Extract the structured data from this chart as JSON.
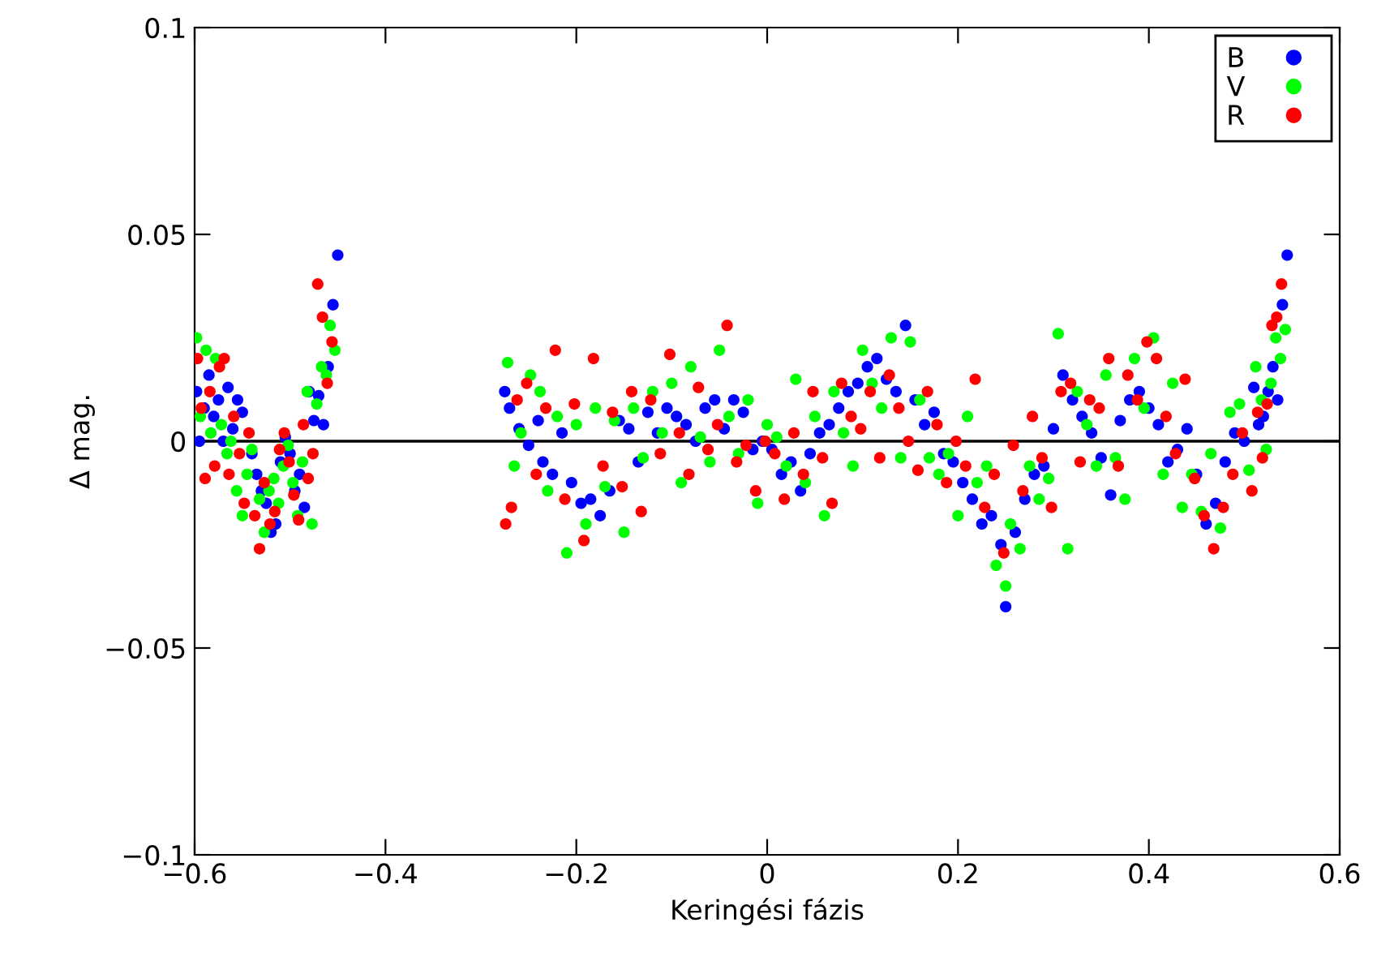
{
  "chart_data": {
    "type": "scatter",
    "xlabel": "Keringési fázis",
    "ylabel": "Δ mag.",
    "xlim": [
      -0.6,
      0.6
    ],
    "ylim": [
      -0.1,
      0.1
    ],
    "xticks": [
      {
        "value": -0.6,
        "label": "−0.6"
      },
      {
        "value": -0.4,
        "label": "−0.4"
      },
      {
        "value": -0.2,
        "label": "−0.2"
      },
      0,
      0.2,
      0.4,
      0.6
    ],
    "yticks": [
      {
        "value": -0.1,
        "label": "−0.1"
      },
      {
        "value": -0.05,
        "label": "−0.05"
      },
      0,
      0.05,
      0.1
    ],
    "marker": "circle",
    "legend": "top right",
    "ref_lines": [
      {
        "axis": "y",
        "value": 0,
        "color": "#000000"
      }
    ],
    "series": [
      {
        "name": "B",
        "color": "#0000ff",
        "x": [
          -0.598,
          -0.595,
          -0.59,
          -0.585,
          -0.58,
          -0.575,
          -0.57,
          -0.565,
          -0.56,
          -0.555,
          -0.55,
          -0.54,
          -0.535,
          -0.53,
          -0.525,
          -0.52,
          -0.515,
          -0.51,
          -0.505,
          -0.5,
          -0.495,
          -0.49,
          -0.485,
          -0.48,
          -0.475,
          -0.47,
          -0.465,
          -0.46,
          -0.455,
          -0.45,
          -0.275,
          -0.27,
          -0.26,
          -0.25,
          -0.24,
          -0.235,
          -0.225,
          -0.215,
          -0.205,
          -0.195,
          -0.185,
          -0.175,
          -0.165,
          -0.155,
          -0.145,
          -0.135,
          -0.125,
          -0.115,
          -0.105,
          -0.095,
          -0.085,
          -0.075,
          -0.065,
          -0.055,
          -0.045,
          -0.035,
          -0.025,
          -0.015,
          -0.005,
          0.005,
          0.015,
          0.025,
          0.035,
          0.045,
          0.055,
          0.065,
          0.075,
          0.085,
          0.095,
          0.105,
          0.115,
          0.125,
          0.135,
          0.145,
          0.155,
          0.165,
          0.175,
          0.185,
          0.195,
          0.205,
          0.215,
          0.225,
          0.235,
          0.245,
          0.25,
          0.26,
          0.27,
          0.28,
          0.29,
          0.3,
          0.31,
          0.32,
          0.33,
          0.34,
          0.35,
          0.36,
          0.37,
          0.38,
          0.39,
          0.4,
          0.41,
          0.42,
          0.43,
          0.44,
          0.45,
          0.46,
          0.47,
          0.48,
          0.49,
          0.5,
          0.51,
          0.515,
          0.52,
          0.525,
          0.53,
          0.535,
          0.54,
          0.545
        ],
        "values": [
          0.012,
          0.0,
          0.008,
          0.016,
          0.006,
          0.01,
          0.0,
          0.013,
          0.003,
          0.01,
          0.007,
          -0.003,
          -0.008,
          -0.012,
          -0.015,
          -0.022,
          -0.02,
          -0.005,
          0.001,
          -0.003,
          -0.012,
          -0.008,
          -0.016,
          0.012,
          0.005,
          0.011,
          0.004,
          0.018,
          0.033,
          0.045,
          0.012,
          0.008,
          0.003,
          -0.001,
          0.005,
          -0.005,
          -0.008,
          0.002,
          -0.01,
          -0.015,
          -0.014,
          -0.018,
          -0.012,
          0.005,
          0.003,
          -0.005,
          0.007,
          0.002,
          0.008,
          0.006,
          0.004,
          0.0,
          0.008,
          0.01,
          0.003,
          0.01,
          0.007,
          -0.002,
          0.0,
          -0.002,
          -0.008,
          -0.005,
          -0.012,
          -0.003,
          0.002,
          0.004,
          0.008,
          0.012,
          0.014,
          0.018,
          0.02,
          0.015,
          0.012,
          0.028,
          0.01,
          0.004,
          0.007,
          -0.003,
          -0.005,
          -0.01,
          -0.014,
          -0.02,
          -0.018,
          -0.025,
          -0.04,
          -0.022,
          -0.014,
          -0.008,
          -0.006,
          0.003,
          0.016,
          0.01,
          0.006,
          0.002,
          -0.004,
          -0.013,
          0.005,
          0.01,
          0.012,
          0.008,
          0.004,
          -0.005,
          -0.002,
          0.003,
          -0.008,
          -0.02,
          -0.015,
          -0.005,
          0.002,
          0.0,
          0.013,
          0.004,
          0.006,
          0.012,
          0.018,
          0.01,
          0.033,
          0.045
        ]
      },
      {
        "name": "V",
        "color": "#00ff00",
        "x": [
          -0.598,
          -0.594,
          -0.588,
          -0.583,
          -0.578,
          -0.572,
          -0.566,
          -0.562,
          -0.556,
          -0.55,
          -0.545,
          -0.54,
          -0.532,
          -0.527,
          -0.522,
          -0.517,
          -0.512,
          -0.507,
          -0.502,
          -0.497,
          -0.492,
          -0.487,
          -0.482,
          -0.477,
          -0.472,
          -0.467,
          -0.462,
          -0.458,
          -0.453,
          -0.272,
          -0.265,
          -0.258,
          -0.248,
          -0.238,
          -0.23,
          -0.22,
          -0.21,
          -0.2,
          -0.19,
          -0.18,
          -0.17,
          -0.16,
          -0.15,
          -0.14,
          -0.13,
          -0.12,
          -0.11,
          -0.1,
          -0.09,
          -0.08,
          -0.07,
          -0.06,
          -0.05,
          -0.04,
          -0.03,
          -0.02,
          -0.01,
          0.0,
          0.01,
          0.02,
          0.03,
          0.04,
          0.05,
          0.06,
          0.07,
          0.08,
          0.09,
          0.1,
          0.11,
          0.12,
          0.13,
          0.14,
          0.15,
          0.16,
          0.17,
          0.18,
          0.19,
          0.2,
          0.21,
          0.22,
          0.23,
          0.24,
          0.25,
          0.255,
          0.265,
          0.275,
          0.285,
          0.295,
          0.305,
          0.315,
          0.325,
          0.335,
          0.345,
          0.355,
          0.365,
          0.375,
          0.385,
          0.395,
          0.405,
          0.415,
          0.425,
          0.435,
          0.445,
          0.455,
          0.465,
          0.475,
          0.485,
          0.495,
          0.505,
          0.512,
          0.518,
          0.523,
          0.528,
          0.533,
          0.538,
          0.543
        ],
        "values": [
          0.025,
          0.006,
          0.022,
          0.002,
          0.02,
          0.004,
          -0.003,
          0.0,
          -0.012,
          -0.018,
          -0.008,
          -0.002,
          -0.014,
          -0.022,
          -0.012,
          -0.009,
          -0.015,
          -0.006,
          -0.001,
          -0.01,
          -0.018,
          -0.005,
          0.012,
          -0.02,
          0.009,
          0.018,
          0.016,
          0.028,
          0.022,
          0.019,
          -0.006,
          0.002,
          0.016,
          0.012,
          -0.012,
          0.006,
          -0.027,
          0.004,
          -0.02,
          0.008,
          -0.011,
          0.005,
          -0.022,
          0.008,
          -0.004,
          0.012,
          0.002,
          0.014,
          -0.01,
          0.018,
          0.001,
          -0.005,
          0.022,
          0.006,
          -0.003,
          0.01,
          -0.015,
          0.004,
          0.001,
          -0.006,
          0.015,
          -0.01,
          0.006,
          -0.018,
          0.012,
          0.002,
          -0.006,
          0.022,
          0.014,
          0.008,
          0.025,
          -0.004,
          0.024,
          0.01,
          -0.004,
          -0.008,
          -0.003,
          -0.018,
          0.006,
          -0.01,
          -0.006,
          -0.03,
          -0.035,
          -0.02,
          -0.026,
          -0.006,
          -0.014,
          -0.009,
          0.026,
          -0.026,
          0.012,
          0.004,
          -0.006,
          0.016,
          -0.004,
          -0.014,
          0.02,
          0.008,
          0.025,
          -0.008,
          0.014,
          -0.016,
          -0.008,
          -0.017,
          -0.003,
          -0.021,
          0.007,
          0.009,
          -0.007,
          0.018,
          0.01,
          -0.002,
          0.014,
          0.025,
          0.02,
          0.027
        ]
      },
      {
        "name": "R",
        "color": "#ff0000",
        "x": [
          -0.597,
          -0.593,
          -0.589,
          -0.584,
          -0.579,
          -0.574,
          -0.569,
          -0.564,
          -0.559,
          -0.553,
          -0.548,
          -0.543,
          -0.537,
          -0.532,
          -0.527,
          -0.521,
          -0.516,
          -0.511,
          -0.506,
          -0.501,
          -0.496,
          -0.491,
          -0.486,
          -0.481,
          -0.476,
          -0.471,
          -0.466,
          -0.461,
          -0.456,
          -0.274,
          -0.268,
          -0.262,
          -0.252,
          -0.242,
          -0.232,
          -0.222,
          -0.212,
          -0.202,
          -0.192,
          -0.182,
          -0.172,
          -0.162,
          -0.152,
          -0.142,
          -0.132,
          -0.122,
          -0.112,
          -0.102,
          -0.092,
          -0.082,
          -0.072,
          -0.062,
          -0.052,
          -0.042,
          -0.032,
          -0.022,
          -0.012,
          -0.002,
          0.008,
          0.018,
          0.028,
          0.038,
          0.048,
          0.058,
          0.068,
          0.078,
          0.088,
          0.098,
          0.108,
          0.118,
          0.128,
          0.138,
          0.148,
          0.158,
          0.168,
          0.178,
          0.188,
          0.198,
          0.208,
          0.218,
          0.228,
          0.238,
          0.248,
          0.258,
          0.268,
          0.278,
          0.288,
          0.298,
          0.308,
          0.318,
          0.328,
          0.338,
          0.348,
          0.358,
          0.368,
          0.378,
          0.388,
          0.398,
          0.408,
          0.418,
          0.428,
          0.438,
          0.448,
          0.458,
          0.468,
          0.478,
          0.488,
          0.498,
          0.508,
          0.514,
          0.519,
          0.524,
          0.529,
          0.534,
          0.539
        ],
        "values": [
          0.02,
          0.008,
          -0.009,
          0.012,
          -0.006,
          0.018,
          0.02,
          -0.008,
          0.006,
          -0.003,
          -0.015,
          0.002,
          -0.018,
          -0.026,
          -0.01,
          -0.02,
          -0.017,
          -0.002,
          0.002,
          -0.005,
          -0.013,
          -0.019,
          0.004,
          -0.009,
          -0.003,
          0.038,
          0.03,
          0.014,
          0.024,
          -0.02,
          -0.016,
          0.01,
          0.014,
          -0.008,
          0.008,
          0.022,
          -0.014,
          0.009,
          -0.024,
          0.02,
          -0.006,
          0.007,
          -0.011,
          0.012,
          -0.017,
          0.01,
          -0.003,
          0.021,
          0.002,
          -0.008,
          0.013,
          -0.002,
          0.004,
          0.028,
          -0.005,
          -0.001,
          -0.012,
          0.0,
          -0.003,
          -0.014,
          0.002,
          -0.008,
          0.012,
          -0.004,
          -0.015,
          0.014,
          0.006,
          0.003,
          0.012,
          -0.004,
          0.016,
          0.008,
          0.0,
          -0.007,
          0.012,
          0.004,
          -0.01,
          0.0,
          -0.006,
          0.015,
          -0.016,
          -0.008,
          -0.027,
          -0.001,
          -0.012,
          0.006,
          -0.004,
          -0.016,
          0.012,
          0.014,
          -0.005,
          0.01,
          0.008,
          0.02,
          -0.006,
          0.016,
          0.01,
          0.024,
          0.02,
          0.006,
          -0.003,
          0.015,
          -0.009,
          -0.018,
          -0.026,
          -0.016,
          -0.008,
          0.002,
          -0.012,
          0.007,
          -0.004,
          0.009,
          0.028,
          0.03,
          0.038
        ]
      }
    ]
  }
}
